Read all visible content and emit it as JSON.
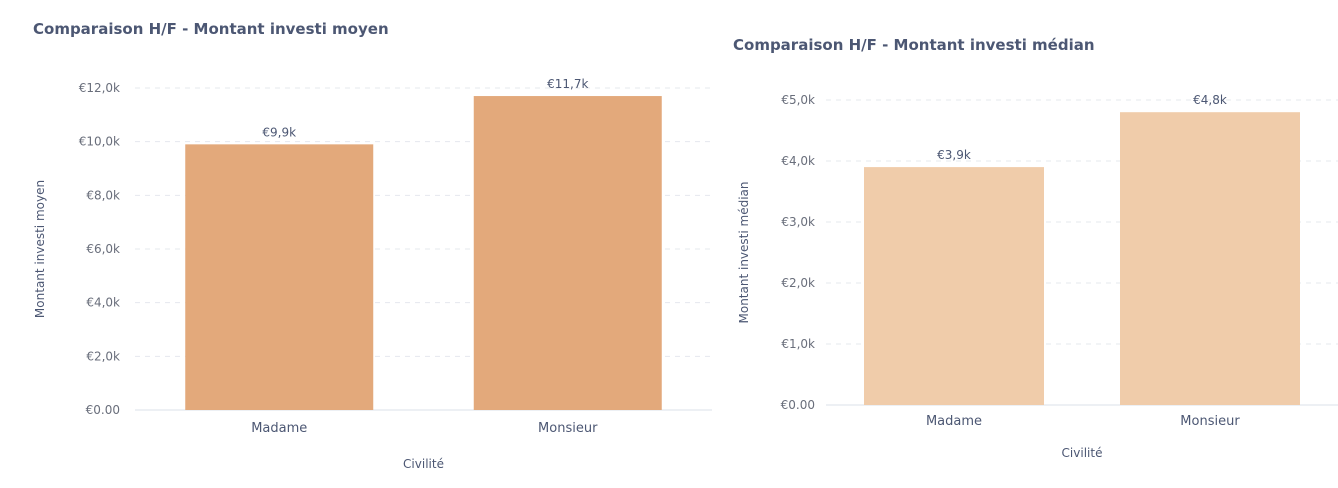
{
  "chart_data": [
    {
      "type": "bar",
      "title": "Comparaison H/F - Montant investi moyen",
      "xlabel": "Civilité",
      "ylabel": "Montant investi moyen",
      "categories": [
        "Madame",
        "Monsieur"
      ],
      "values": [
        9900,
        11700
      ],
      "value_labels": [
        "€9,9k",
        "€11,7k"
      ],
      "yticks": [
        0,
        2000,
        4000,
        6000,
        8000,
        10000,
        12000
      ],
      "ytick_labels": [
        "€0.00",
        "€2,0k",
        "€4,0k",
        "€6,0k",
        "€8,0k",
        "€10,0k",
        "€12,0k"
      ],
      "ylim": [
        0,
        12000
      ],
      "color": "#e3a97b",
      "grid": true,
      "legend": false
    },
    {
      "type": "bar",
      "title": "Comparaison H/F - Montant investi médian",
      "xlabel": "Civilité",
      "ylabel": "Montant investi médian",
      "categories": [
        "Madame",
        "Monsieur"
      ],
      "values": [
        3900,
        4800
      ],
      "value_labels": [
        "€3,9k",
        "€4,8k"
      ],
      "yticks": [
        0,
        1000,
        2000,
        3000,
        4000,
        5000
      ],
      "ytick_labels": [
        "€0.00",
        "€1,0k",
        "€2,0k",
        "€3,0k",
        "€4,0k",
        "€5,0k"
      ],
      "ylim": [
        0,
        5000
      ],
      "color": "#f0ccaa",
      "grid": true,
      "legend": false
    }
  ]
}
